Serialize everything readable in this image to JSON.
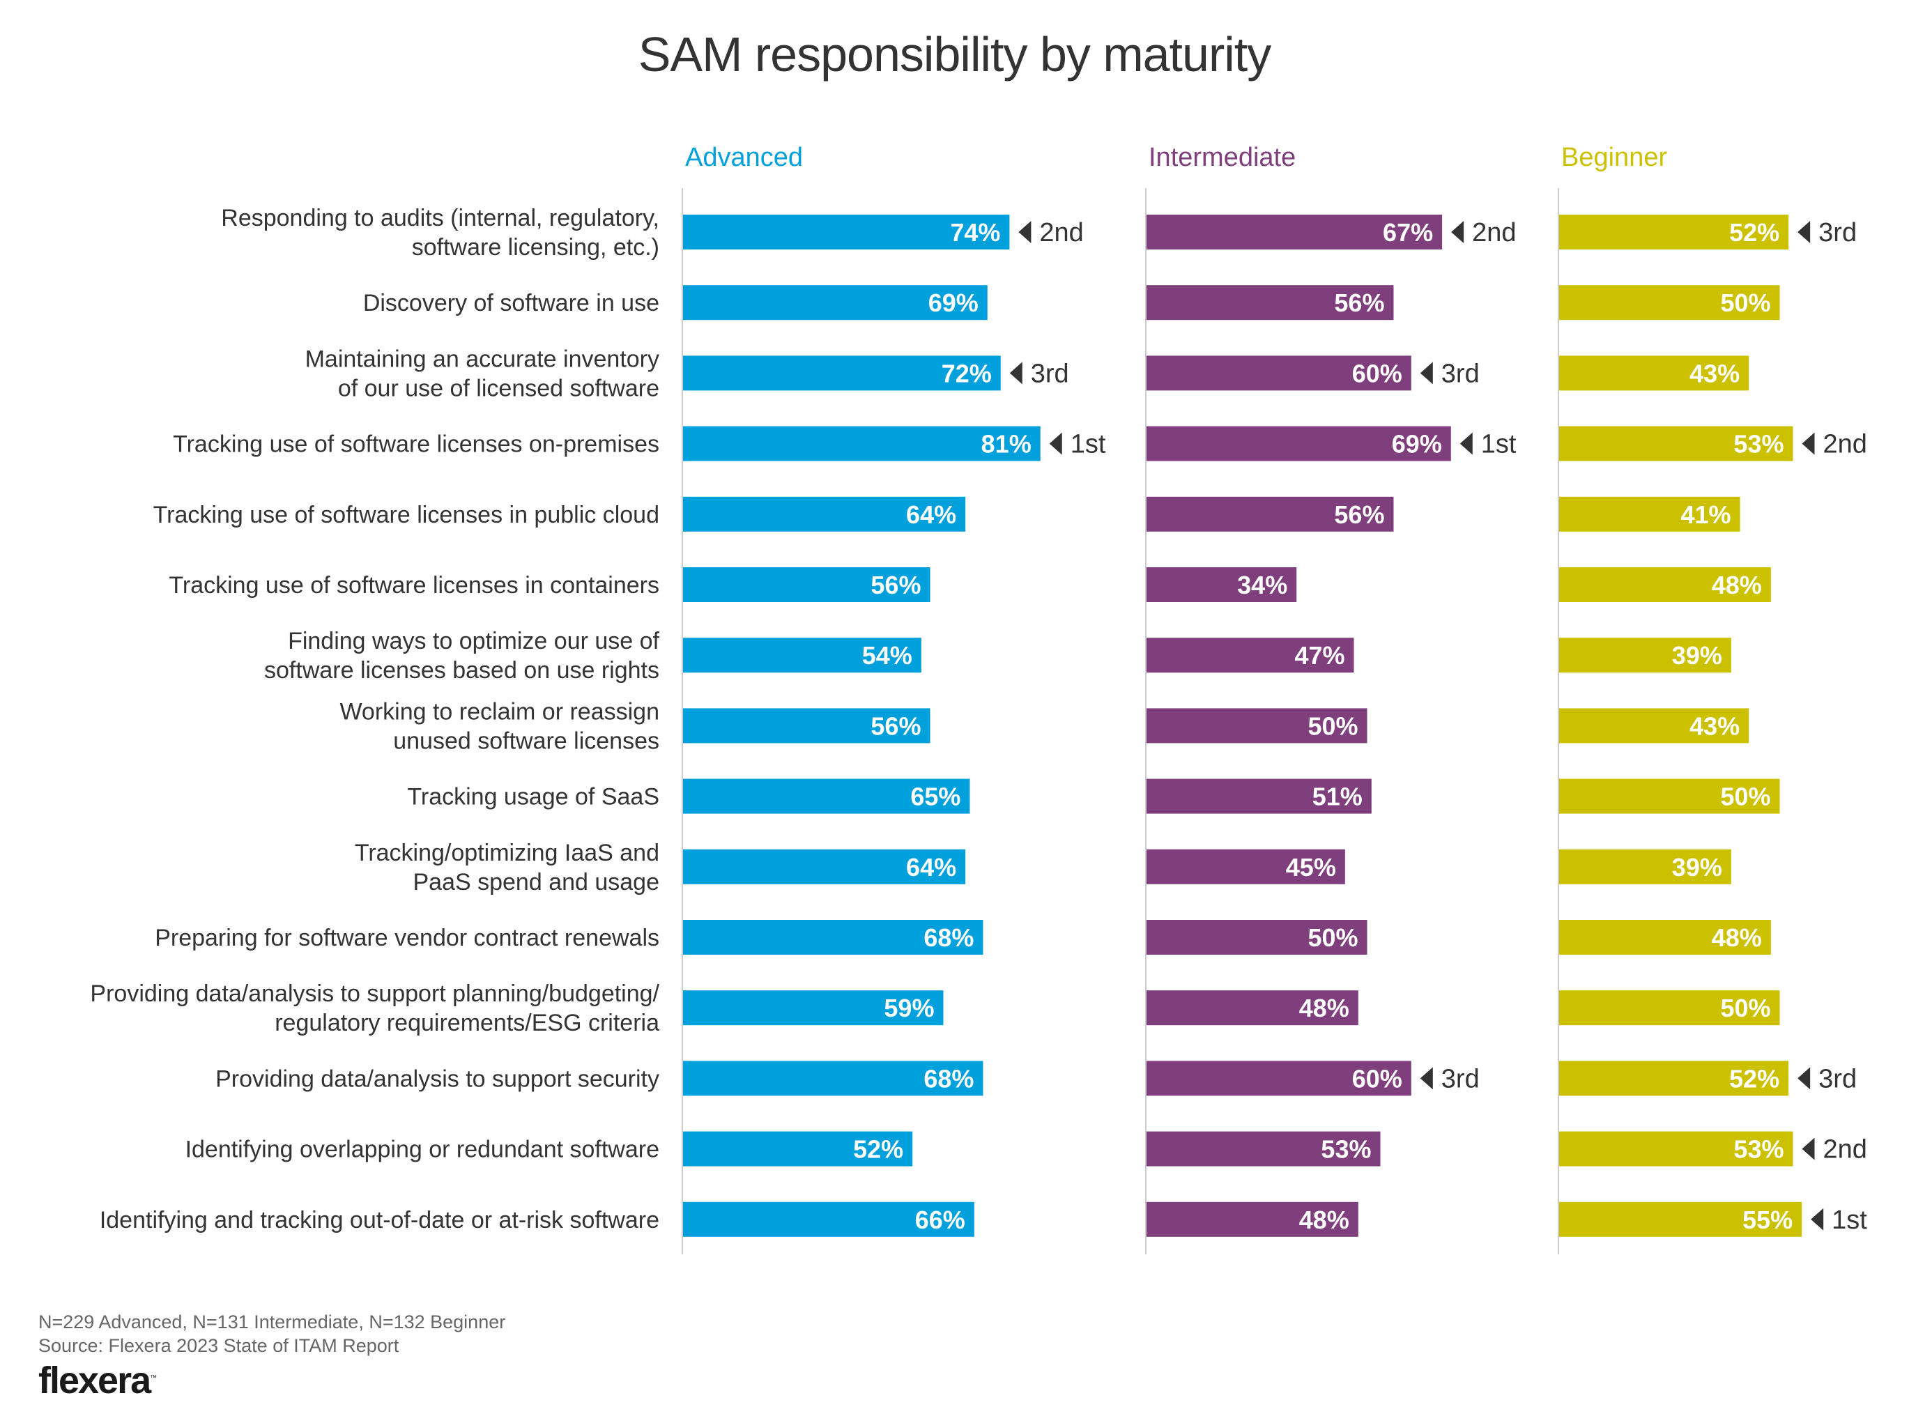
{
  "header": {
    "title": "SAM responsibility by maturity"
  },
  "footer": {
    "sample_note": "N=229 Advanced, N=131 Intermediate, N=132 Beginner",
    "source": "Source: Flexera 2023 State of ITAM Report",
    "logo_text": "flexera",
    "logo_tm": "™"
  },
  "colors": {
    "Advanced": "#00a0dc",
    "Intermediate": "#7f3f7c",
    "Beginner": "#cbc100",
    "rank_marker": "#333333",
    "axis": "#cccccc",
    "label_text": "#333333"
  },
  "chart_data": {
    "type": "bar",
    "orientation": "horizontal",
    "layout": "small-multiples",
    "title": "SAM responsibility by maturity",
    "xlabel": "",
    "ylabel": "",
    "value_format": "percent",
    "xlim": [
      0,
      100
    ],
    "grid": false,
    "legend": "panel headers at top",
    "categories": [
      [
        "Responding to audits (internal, regulatory,",
        "software licensing, etc.)"
      ],
      [
        "Discovery of software in use"
      ],
      [
        "Maintaining an accurate inventory",
        "of our use of licensed software"
      ],
      [
        "Tracking use of software licenses on-premises"
      ],
      [
        "Tracking use of software licenses in public cloud"
      ],
      [
        "Tracking use of software licenses in containers"
      ],
      [
        "Finding ways to optimize our use of",
        "software licenses based on use rights"
      ],
      [
        "Working to reclaim or reassign",
        "unused software licenses"
      ],
      [
        "Tracking usage of SaaS"
      ],
      [
        "Tracking/optimizing IaaS and",
        "PaaS spend and usage"
      ],
      [
        "Preparing for software vendor contract renewals"
      ],
      [
        "Providing data/analysis to support planning/budgeting/",
        "regulatory requirements/ESG criteria"
      ],
      [
        "Providing data/analysis to support security"
      ],
      [
        "Identifying overlapping or redundant software"
      ],
      [
        "Identifying and tracking out-of-date or at-risk software"
      ]
    ],
    "series": [
      {
        "name": "Advanced",
        "values": [
          74,
          69,
          72,
          81,
          64,
          56,
          54,
          56,
          65,
          64,
          68,
          59,
          68,
          52,
          66
        ],
        "labels": [
          "74%",
          "69%",
          "72%",
          "81%",
          "64%",
          "56%",
          "54%",
          "56%",
          "65%",
          "64%",
          "68%",
          "59%",
          "68%",
          "52%",
          "66%"
        ],
        "ranks": [
          "2nd",
          null,
          "3rd",
          "1st",
          null,
          null,
          null,
          null,
          null,
          null,
          null,
          null,
          null,
          null,
          null
        ]
      },
      {
        "name": "Intermediate",
        "values": [
          67,
          56,
          60,
          69,
          56,
          34,
          47,
          50,
          51,
          45,
          50,
          48,
          60,
          53,
          48
        ],
        "labels": [
          "67%",
          "56%",
          "60%",
          "69%",
          "56%",
          "34%",
          "47%",
          "50%",
          "51%",
          "45%",
          "50%",
          "48%",
          "60%",
          "53%",
          "48%"
        ],
        "ranks": [
          "2nd",
          null,
          "3rd",
          "1st",
          null,
          null,
          null,
          null,
          null,
          null,
          null,
          null,
          "3rd",
          null,
          null
        ]
      },
      {
        "name": "Beginner",
        "values": [
          52,
          50,
          43,
          53,
          41,
          48,
          39,
          43,
          50,
          39,
          48,
          50,
          52,
          53,
          55
        ],
        "labels": [
          "52%",
          "50%",
          "43%",
          "53%",
          "41%",
          "48%",
          "39%",
          "43%",
          "50%",
          "39%",
          "48%",
          "50%",
          "52%",
          "53%",
          "55%"
        ],
        "ranks": [
          "3rd",
          null,
          null,
          "2nd",
          null,
          null,
          null,
          null,
          null,
          null,
          null,
          null,
          "3rd",
          "2nd",
          "1st"
        ]
      }
    ]
  }
}
